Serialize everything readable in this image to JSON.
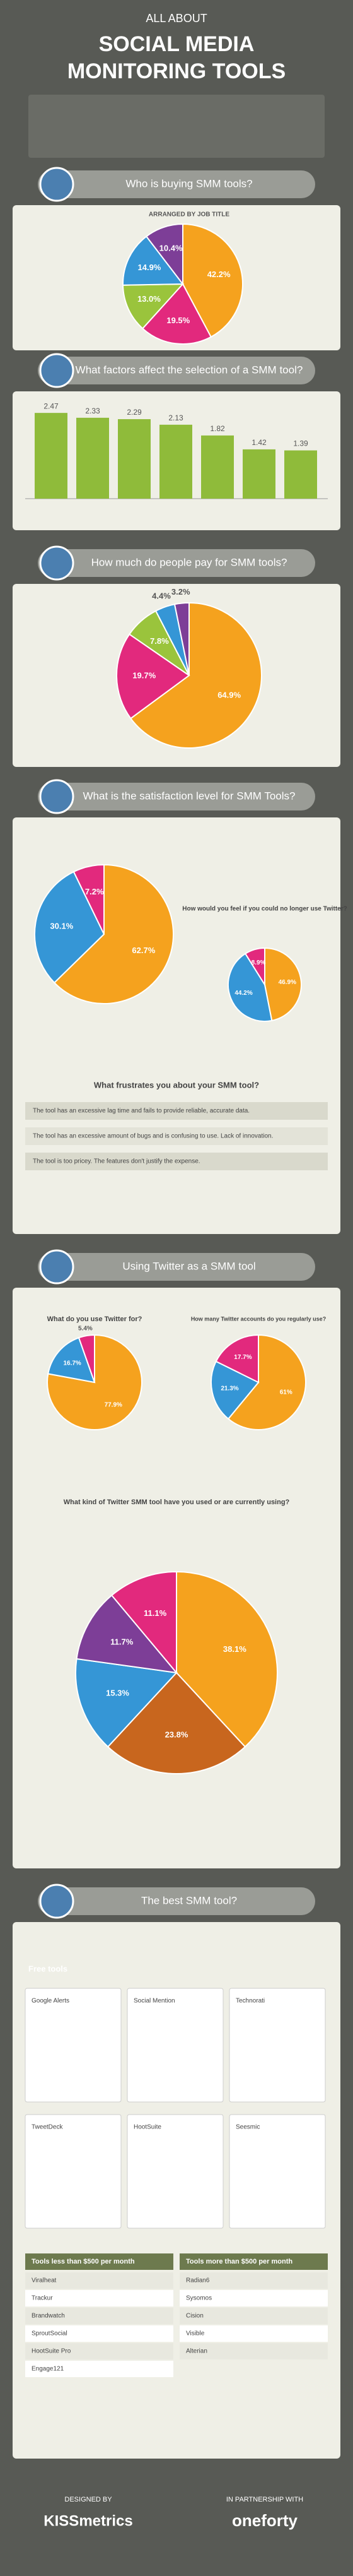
{
  "header": {
    "kicker": "ALL ABOUT",
    "title_line1": "SOCIAL MEDIA",
    "title_line2": "MONITORING TOOLS"
  },
  "chart_data": [
    {
      "type": "pie",
      "title": "Who is buying SMM tools?",
      "subtitle": "ARRANGED BY JOB TITLE",
      "values": [
        42.2,
        19.5,
        13.0,
        14.9,
        10.4
      ],
      "value_labels": [
        "42.2%",
        "19.5%",
        "13.0%",
        "14.9%",
        "10.4%"
      ],
      "colors": [
        "#f5a21e",
        "#e2297d",
        "#9ac43c",
        "#3596d6",
        "#7d3e97"
      ]
    },
    {
      "type": "bar",
      "title": "What factors affect the selection of a SMM tool?",
      "values": [
        2.47,
        2.33,
        2.29,
        2.13,
        1.82,
        1.42,
        1.39
      ],
      "color": "#8fbb3a"
    },
    {
      "type": "pie",
      "title": "How much do people pay for SMM tools?",
      "values": [
        64.9,
        19.7,
        7.8,
        4.4,
        3.2
      ],
      "value_labels": [
        "64.9%",
        "19.7%",
        "7.8%",
        "4.4%",
        "3.2%"
      ],
      "colors": [
        "#f5a21e",
        "#e2297d",
        "#9ac43c",
        "#3596d6",
        "#7d3e97"
      ]
    },
    {
      "type": "pie",
      "title": "What is the satisfaction level for SMM Tools?",
      "values": [
        62.7,
        30.1,
        7.2
      ],
      "value_labels": [
        "62.7%",
        "30.1%",
        "7.2%"
      ],
      "colors": [
        "#f5a21e",
        "#3596d6",
        "#e2297d"
      ]
    },
    {
      "type": "pie",
      "title": "How would you feel if you could no longer use Twitter?",
      "values": [
        46.9,
        44.2,
        8.9
      ],
      "value_labels": [
        "46.9%",
        "44.2%",
        "8.9%"
      ],
      "colors": [
        "#f5a21e",
        "#3596d6",
        "#e2297d"
      ]
    },
    {
      "type": "pie",
      "title": "What do you use Twitter for?",
      "values": [
        77.9,
        16.7,
        5.4
      ],
      "value_labels": [
        "77.9%",
        "16.7%",
        "5.4%"
      ],
      "colors": [
        "#f5a21e",
        "#3596d6",
        "#e2297d"
      ]
    },
    {
      "type": "pie",
      "title": "How many Twitter accounts do you regularly use?",
      "values": [
        61.0,
        21.3,
        17.7
      ],
      "value_labels": [
        "61%",
        "21.3%",
        "17.7%"
      ],
      "colors": [
        "#f5a21e",
        "#3596d6",
        "#e2297d"
      ]
    },
    {
      "type": "pie",
      "title": "What kind of Twitter SMM tool have you used or are currently using?",
      "values": [
        38.1,
        23.8,
        15.3,
        11.7,
        11.1
      ],
      "value_labels": [
        "38.1%",
        "23.8%",
        "15.3%",
        "11.7%",
        "11.1%"
      ],
      "colors": [
        "#f5a21e",
        "#c8661e",
        "#3596d6",
        "#7d3e97",
        "#e2297d"
      ]
    }
  ],
  "frustrations": {
    "title": "What frustrates you about your SMM tool?",
    "items": [
      "The tool has an excessive lag time and fails to provide reliable, accurate data.",
      "The tool has an excessive amount of bugs and is confusing to use. Lack of innovation.",
      "The tool is too pricey. The features don't justify the expense."
    ]
  },
  "twitter": {
    "title": "Using Twitter as a SMM tool"
  },
  "best": {
    "title": "The best SMM tool?",
    "free_title": "Free tools",
    "free_items": [
      "Google Alerts",
      "Social Mention",
      "Technorati",
      "TweetDeck",
      "HootSuite",
      "Seesmic"
    ],
    "low_title": "Tools less than $500 per month",
    "low_items": [
      "Viralheat",
      "Trackur",
      "Brandwatch",
      "SproutSocial",
      "HootSuite Pro",
      "Engage121"
    ],
    "high_title": "Tools more than $500 per month",
    "high_items": [
      "Radian6",
      "Sysomos",
      "Cision",
      "Visible",
      "Alterian"
    ]
  },
  "footer": {
    "designed": "DESIGNED BY",
    "designer": "KISSmetrics",
    "partner_label": "IN PARTNERSHIP WITH",
    "partner": "oneforty"
  }
}
